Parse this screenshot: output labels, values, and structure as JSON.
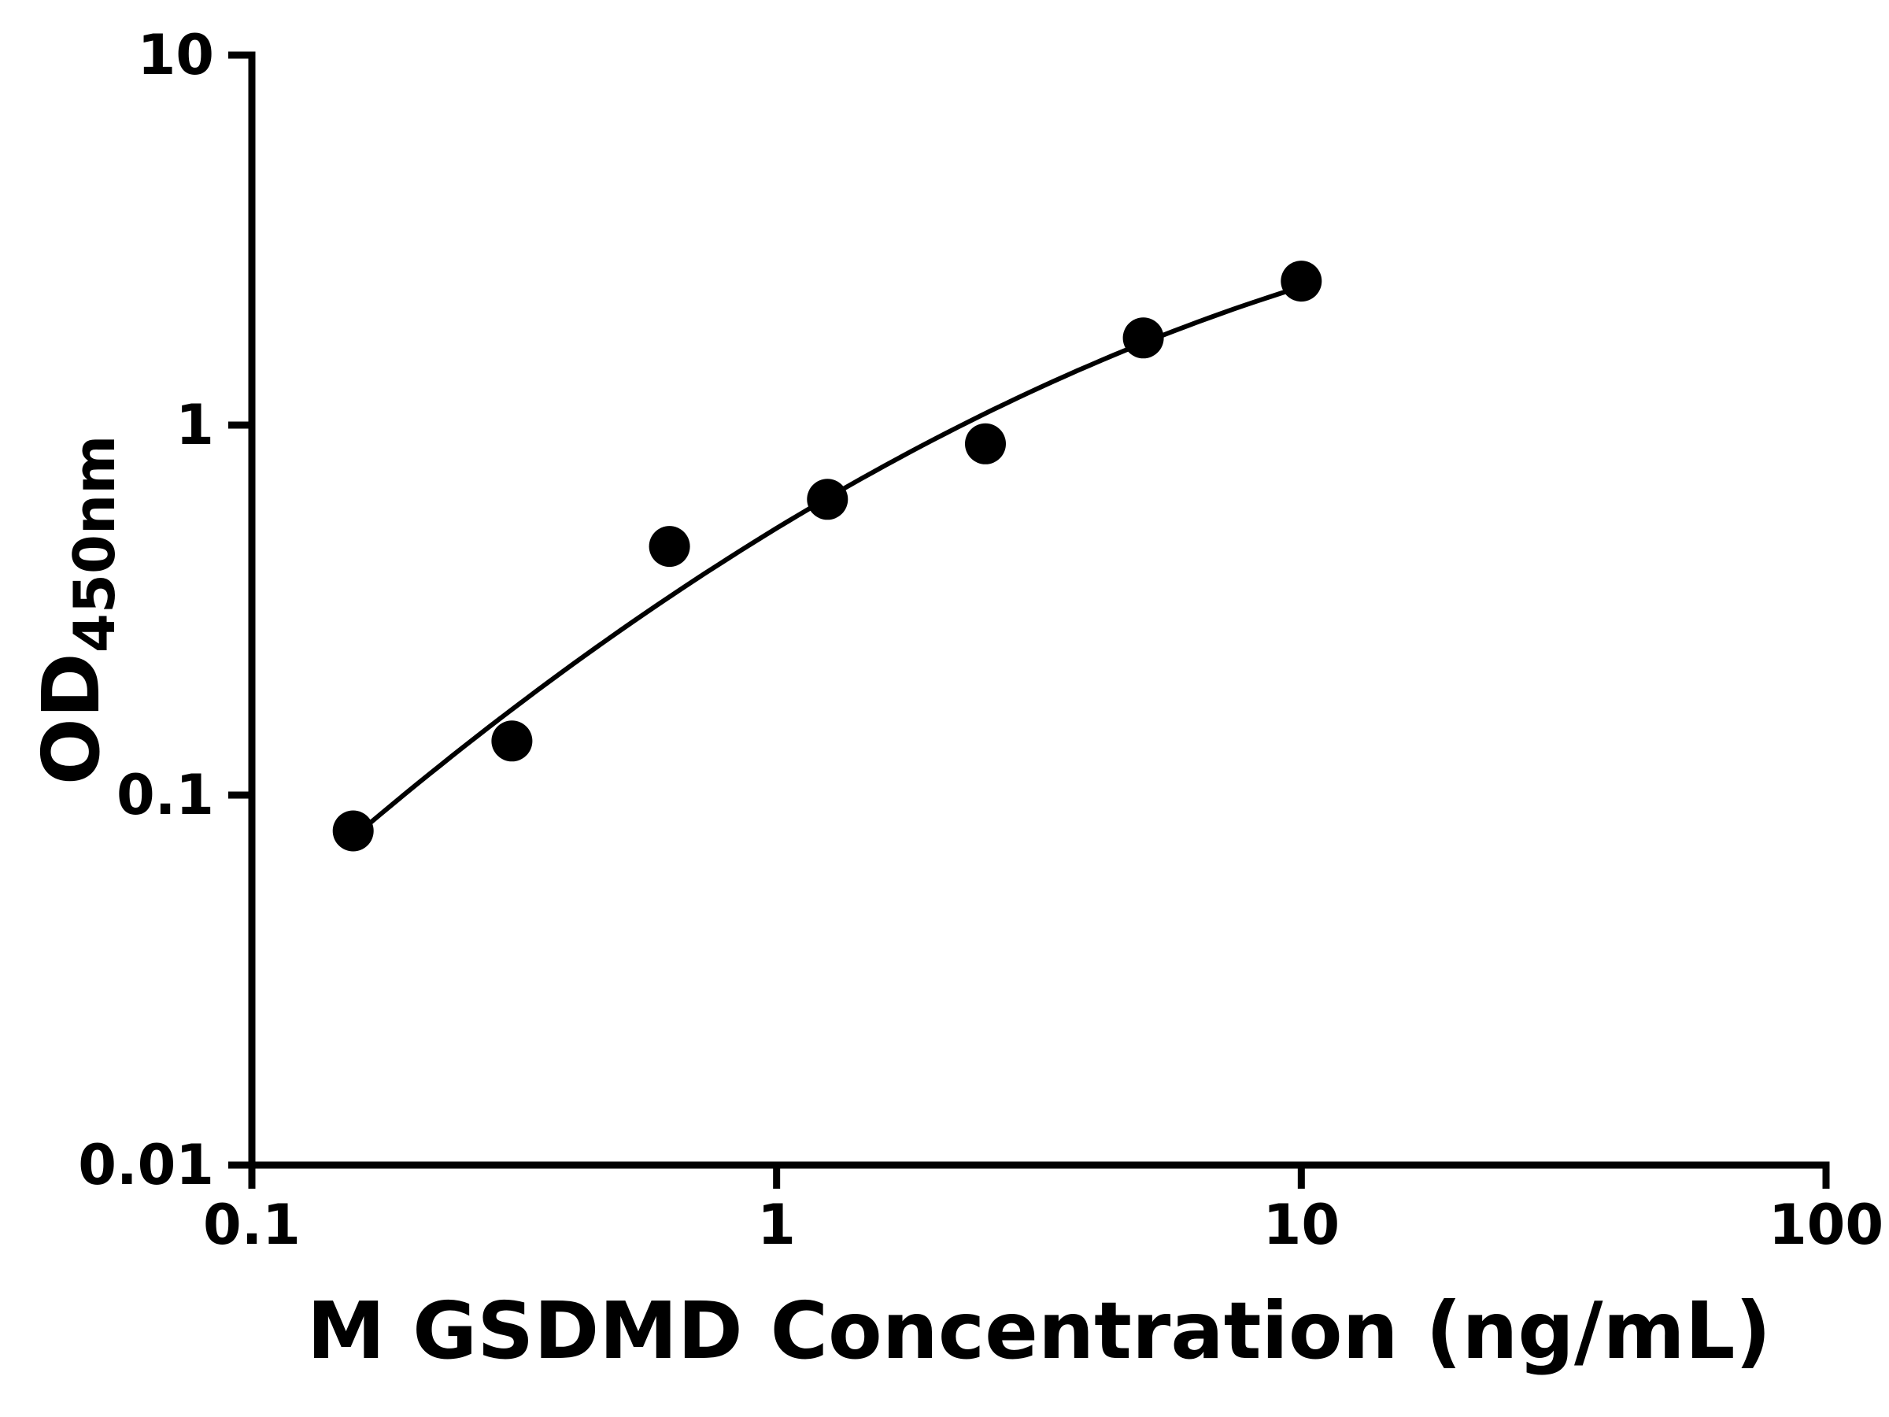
{
  "figure": {
    "background_color": "#ffffff",
    "foreground_color": "#000000"
  },
  "chart_data": {
    "type": "scatter",
    "title": "",
    "xlabel": "M GSDMD Concentration (ng/mL)",
    "ylabel": "OD450nm",
    "ylabel_base": "OD",
    "ylabel_subscript": "450nm",
    "x_scale": "log",
    "y_scale": "log",
    "xlim": [
      0.1,
      100
    ],
    "ylim": [
      0.01,
      10
    ],
    "grid": false,
    "legend": "none",
    "x_ticks": {
      "values": [
        0.1,
        1,
        10,
        100
      ],
      "labels": [
        "0.1",
        "1",
        "10",
        "100"
      ]
    },
    "y_ticks": {
      "values": [
        10,
        1,
        0.1,
        0.01
      ],
      "labels": [
        "10",
        "1",
        "0.1",
        "0.01"
      ]
    },
    "series": [
      {
        "name": "standard-curve-points",
        "marker": "circle",
        "color": "#000000",
        "points": [
          {
            "x": 0.156,
            "y": 0.08
          },
          {
            "x": 0.313,
            "y": 0.14
          },
          {
            "x": 0.625,
            "y": 0.47
          },
          {
            "x": 1.25,
            "y": 0.63
          },
          {
            "x": 2.5,
            "y": 0.89
          },
          {
            "x": 5,
            "y": 1.72
          },
          {
            "x": 10,
            "y": 2.45
          }
        ]
      }
    ],
    "fit_curve": {
      "type": "quadratic_in_log10_space",
      "description": "log10(y) = a0 + a1*log10(x) + a2*log10(x)^2",
      "coeffs": [
        -0.2788,
        0.8642,
        -0.2115
      ],
      "x_range": [
        0.15,
        10.2
      ],
      "color": "#000000"
    }
  }
}
